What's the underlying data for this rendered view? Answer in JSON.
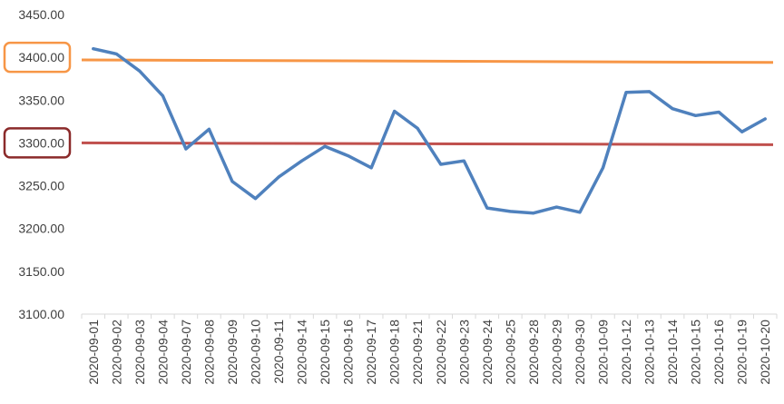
{
  "chart_data": {
    "type": "line",
    "title": "",
    "xlabel": "",
    "ylabel": "",
    "ylim": [
      3100,
      3450
    ],
    "yticks": [
      "3450.00",
      "3400.00",
      "3350.00",
      "3300.00",
      "3250.00",
      "3200.00",
      "3150.00",
      "3100.00"
    ],
    "yticks_values": [
      3450,
      3400,
      3350,
      3300,
      3250,
      3200,
      3150,
      3100
    ],
    "grid": false,
    "legend": "none",
    "categories": [
      "2020-09-01",
      "2020-09-02",
      "2020-09-03",
      "2020-09-04",
      "2020-09-07",
      "2020-09-08",
      "2020-09-09",
      "2020-09-10",
      "2020-09-11",
      "2020-09-14",
      "2020-09-15",
      "2020-09-16",
      "2020-09-17",
      "2020-09-18",
      "2020-09-21",
      "2020-09-22",
      "2020-09-23",
      "2020-09-24",
      "2020-09-25",
      "2020-09-28",
      "2020-09-29",
      "2020-09-30",
      "2020-10-09",
      "2020-10-12",
      "2020-10-13",
      "2020-10-14",
      "2020-10-15",
      "2020-10-16",
      "2020-10-19",
      "2020-10-20"
    ],
    "series": [
      {
        "color": "#4f81bd",
        "values": [
          3410,
          3404,
          3384,
          3355,
          3293,
          3316,
          3255,
          3235,
          3260,
          3279,
          3296,
          3285,
          3271,
          3337,
          3317,
          3275,
          3279,
          3224,
          3220,
          3218,
          3225,
          3219,
          3271,
          3359,
          3360,
          3340,
          3332,
          3336,
          3313,
          3328
        ]
      }
    ],
    "reference_lines": [
      {
        "color": "#f79646",
        "start": 3397,
        "end": 3394
      },
      {
        "color": "#c0504d",
        "start": 3300,
        "end": 3298
      }
    ],
    "highlighted_ticks": [
      {
        "value": 3400,
        "color": "#f79646"
      },
      {
        "value": 3300,
        "color": "#8b2a2a"
      }
    ]
  }
}
